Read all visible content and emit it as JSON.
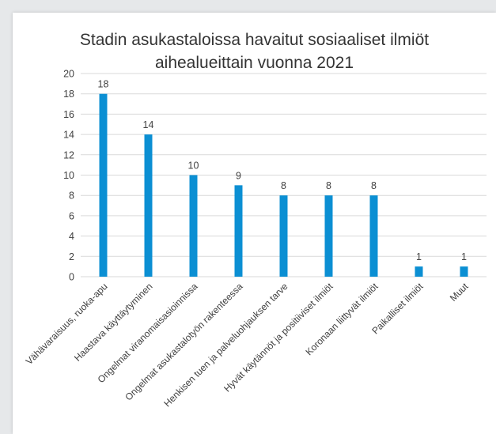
{
  "chart_data": {
    "type": "bar",
    "title_lines": [
      "Stadin asukastaloissa havaitut sosiaaliset ilmiöt",
      "aihealueittain vuonna 2021"
    ],
    "categories": [
      "Vähävaraisuus, ruoka-apu",
      "Haastava käyttäytyminen",
      "Ongelmat viranomaisasioinnissa",
      "Ongelmat asukastalotyön rakenteessa",
      "Henkisen tuen ja palveluohjauksen tarve",
      "Hyvät käytännöt ja positiiviset ilmiöt",
      "Koronaan liittyvät ilmiöt",
      "Paikalliset ilmiöt",
      "Muut"
    ],
    "values": [
      18,
      14,
      10,
      9,
      8,
      8,
      8,
      1,
      1
    ],
    "data_labels": [
      "18",
      "14",
      "10",
      "9",
      "8",
      "8",
      "8",
      "1",
      "1"
    ],
    "ylim": [
      0,
      20
    ],
    "y_ticks": [
      "0",
      "2",
      "4",
      "6",
      "8",
      "10",
      "12",
      "14",
      "16",
      "18",
      "20"
    ],
    "grid": true,
    "legend": "none",
    "colors": {
      "bar": "#0b8fd3",
      "grid": "#d9d9d9",
      "text": "#404040",
      "title": "#333333",
      "background": "#ffffff",
      "frame": "#e6e8ea"
    }
  }
}
